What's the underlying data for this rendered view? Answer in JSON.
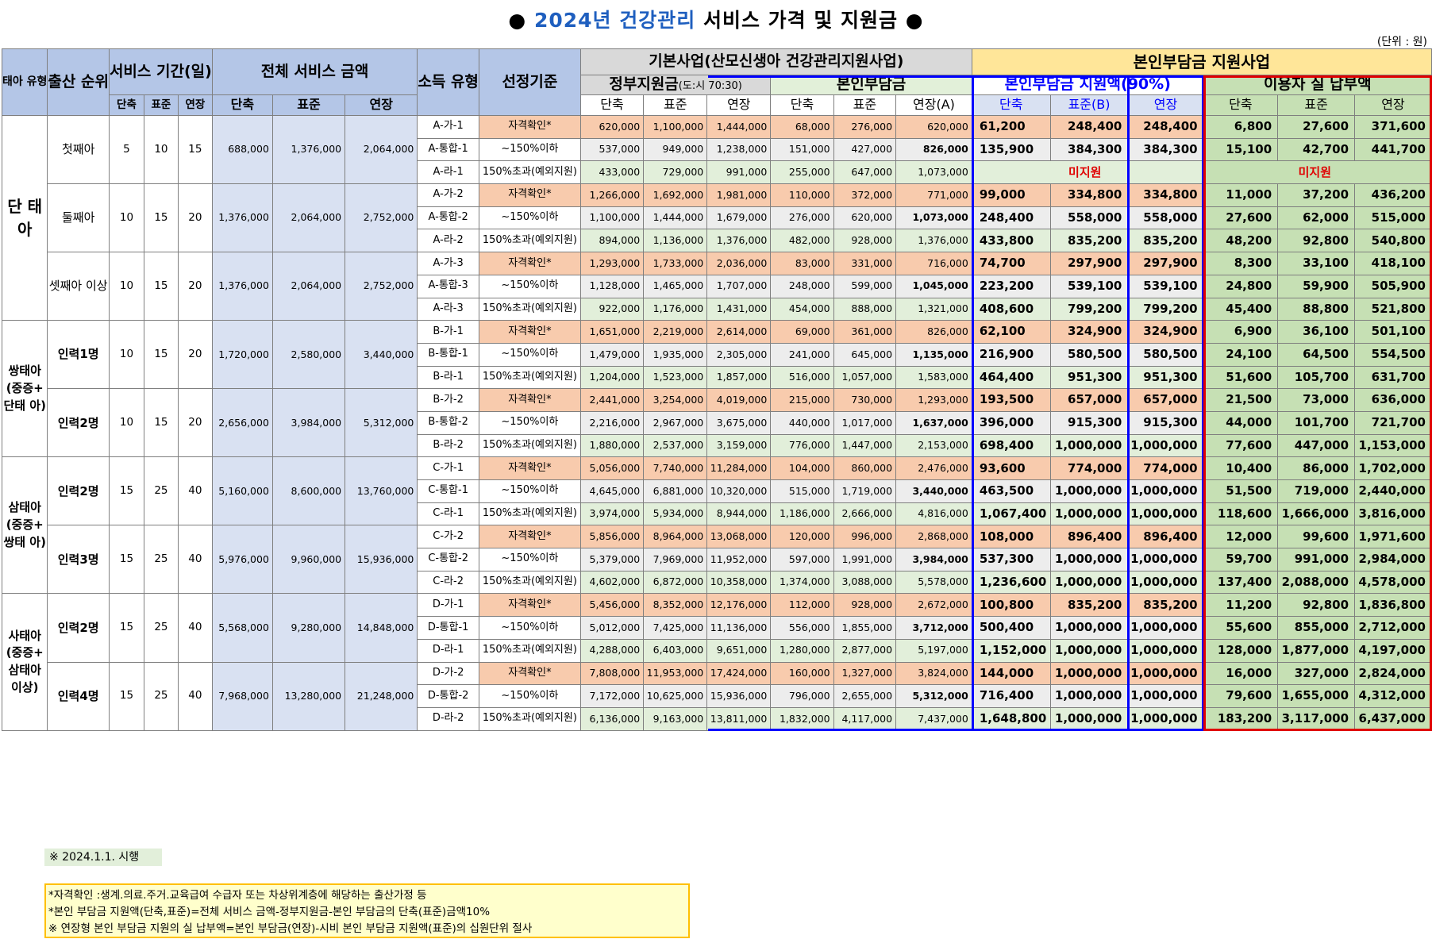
{
  "title": {
    "prefix": "● ",
    "year": "2024년 건강관리",
    "rest": " 서비스 가격 및 지원금 ●"
  },
  "unit": "(단위 : 원)",
  "headers": {
    "type": "태아\n유형",
    "order": "출산\n순위",
    "period": "서비스\n기간(일)",
    "total": "전체 서비스 금액",
    "income": "소득\n유형",
    "criteria": "선정기준",
    "basic": "기본사업(산모신생아 건강관리지원사업)",
    "support": "본인부담금 지원사업",
    "gov": "정부지원금",
    "gov_ratio": "(도:시 70:30)",
    "self": "본인부담금",
    "selfsupport": "본인부담금 지원액(90%)",
    "actual": "이용자 실 납부액",
    "short": "단축",
    "standard": "표준",
    "extended": "연장",
    "extendedA": "연장(A)",
    "standardB": "표준(B)"
  },
  "groups": [
    {
      "label": "단\n태\n아",
      "subs": [
        {
          "order": "첫째아",
          "days": [
            "5",
            "10",
            "15"
          ],
          "total": [
            "688,000",
            "1,376,000",
            "2,064,000"
          ],
          "rows": [
            {
              "code": "A-가-1",
              "crit": "자격확인*",
              "gov": [
                "620,000",
                "1,100,000",
                "1,444,000"
              ],
              "self": [
                "68,000",
                "276,000",
                "620,000"
              ],
              "sup": [
                "61,200",
                "248,400",
                "248,400"
              ],
              "act": [
                "6,800",
                "27,600",
                "371,600"
              ]
            },
            {
              "code": "A-통합-1",
              "crit": "~150%이하",
              "gov": [
                "537,000",
                "949,000",
                "1,238,000"
              ],
              "self": [
                "151,000",
                "427,000",
                "826,000"
              ],
              "sup": [
                "135,900",
                "384,300",
                "384,300"
              ],
              "act": [
                "15,100",
                "42,700",
                "441,700"
              ]
            },
            {
              "code": "A-라-1",
              "crit": "150%초과(예외지원)",
              "gov": [
                "433,000",
                "729,000",
                "991,000"
              ],
              "self": [
                "255,000",
                "647,000",
                "1,073,000"
              ],
              "none": "미지원"
            }
          ]
        },
        {
          "order": "둘째아",
          "days": [
            "10",
            "15",
            "20"
          ],
          "total": [
            "1,376,000",
            "2,064,000",
            "2,752,000"
          ],
          "rows": [
            {
              "code": "A-가-2",
              "crit": "자격확인*",
              "gov": [
                "1,266,000",
                "1,692,000",
                "1,981,000"
              ],
              "self": [
                "110,000",
                "372,000",
                "771,000"
              ],
              "sup": [
                "99,000",
                "334,800",
                "334,800"
              ],
              "act": [
                "11,000",
                "37,200",
                "436,200"
              ]
            },
            {
              "code": "A-통합-2",
              "crit": "~150%이하",
              "gov": [
                "1,100,000",
                "1,444,000",
                "1,679,000"
              ],
              "self": [
                "276,000",
                "620,000",
                "1,073,000"
              ],
              "sup": [
                "248,400",
                "558,000",
                "558,000"
              ],
              "act": [
                "27,600",
                "62,000",
                "515,000"
              ]
            },
            {
              "code": "A-라-2",
              "crit": "150%초과(예외지원)",
              "gov": [
                "894,000",
                "1,136,000",
                "1,376,000"
              ],
              "self": [
                "482,000",
                "928,000",
                "1,376,000"
              ],
              "sup": [
                "433,800",
                "835,200",
                "835,200"
              ],
              "act": [
                "48,200",
                "92,800",
                "540,800"
              ]
            }
          ]
        },
        {
          "order": "셋째아\n이상",
          "days": [
            "10",
            "15",
            "20"
          ],
          "total": [
            "1,376,000",
            "2,064,000",
            "2,752,000"
          ],
          "rows": [
            {
              "code": "A-가-3",
              "crit": "자격확인*",
              "gov": [
                "1,293,000",
                "1,733,000",
                "2,036,000"
              ],
              "self": [
                "83,000",
                "331,000",
                "716,000"
              ],
              "sup": [
                "74,700",
                "297,900",
                "297,900"
              ],
              "act": [
                "8,300",
                "33,100",
                "418,100"
              ]
            },
            {
              "code": "A-통합-3",
              "crit": "~150%이하",
              "gov": [
                "1,128,000",
                "1,465,000",
                "1,707,000"
              ],
              "self": [
                "248,000",
                "599,000",
                "1,045,000"
              ],
              "sup": [
                "223,200",
                "539,100",
                "539,100"
              ],
              "act": [
                "24,800",
                "59,900",
                "505,900"
              ]
            },
            {
              "code": "A-라-3",
              "crit": "150%초과(예외지원)",
              "gov": [
                "922,000",
                "1,176,000",
                "1,431,000"
              ],
              "self": [
                "454,000",
                "888,000",
                "1,321,000"
              ],
              "sup": [
                "408,600",
                "799,200",
                "799,200"
              ],
              "act": [
                "45,400",
                "88,800",
                "521,800"
              ]
            }
          ]
        }
      ]
    },
    {
      "label": "쌍태아\n(중증+\n단태\n아)",
      "subs": [
        {
          "order": "인력1명",
          "days": [
            "10",
            "15",
            "20"
          ],
          "total": [
            "1,720,000",
            "2,580,000",
            "3,440,000"
          ],
          "rows": [
            {
              "code": "B-가-1",
              "crit": "자격확인*",
              "gov": [
                "1,651,000",
                "2,219,000",
                "2,614,000"
              ],
              "self": [
                "69,000",
                "361,000",
                "826,000"
              ],
              "sup": [
                "62,100",
                "324,900",
                "324,900"
              ],
              "act": [
                "6,900",
                "36,100",
                "501,100"
              ]
            },
            {
              "code": "B-통합-1",
              "crit": "~150%이하",
              "gov": [
                "1,479,000",
                "1,935,000",
                "2,305,000"
              ],
              "self": [
                "241,000",
                "645,000",
                "1,135,000"
              ],
              "sup": [
                "216,900",
                "580,500",
                "580,500"
              ],
              "act": [
                "24,100",
                "64,500",
                "554,500"
              ]
            },
            {
              "code": "B-라-1",
              "crit": "150%초과(예외지원)",
              "gov": [
                "1,204,000",
                "1,523,000",
                "1,857,000"
              ],
              "self": [
                "516,000",
                "1,057,000",
                "1,583,000"
              ],
              "sup": [
                "464,400",
                "951,300",
                "951,300"
              ],
              "act": [
                "51,600",
                "105,700",
                "631,700"
              ]
            }
          ]
        },
        {
          "order": "인력2명",
          "days": [
            "10",
            "15",
            "20"
          ],
          "total": [
            "2,656,000",
            "3,984,000",
            "5,312,000"
          ],
          "rows": [
            {
              "code": "B-가-2",
              "crit": "자격확인*",
              "gov": [
                "2,441,000",
                "3,254,000",
                "4,019,000"
              ],
              "self": [
                "215,000",
                "730,000",
                "1,293,000"
              ],
              "sup": [
                "193,500",
                "657,000",
                "657,000"
              ],
              "act": [
                "21,500",
                "73,000",
                "636,000"
              ]
            },
            {
              "code": "B-통합-2",
              "crit": "~150%이하",
              "gov": [
                "2,216,000",
                "2,967,000",
                "3,675,000"
              ],
              "self": [
                "440,000",
                "1,017,000",
                "1,637,000"
              ],
              "sup": [
                "396,000",
                "915,300",
                "915,300"
              ],
              "act": [
                "44,000",
                "101,700",
                "721,700"
              ]
            },
            {
              "code": "B-라-2",
              "crit": "150%초과(예외지원)",
              "gov": [
                "1,880,000",
                "2,537,000",
                "3,159,000"
              ],
              "self": [
                "776,000",
                "1,447,000",
                "2,153,000"
              ],
              "sup": [
                "698,400",
                "1,000,000",
                "1,000,000"
              ],
              "act": [
                "77,600",
                "447,000",
                "1,153,000"
              ]
            }
          ]
        }
      ]
    },
    {
      "label": "삼태아\n(중증+\n쌍태\n아)",
      "subs": [
        {
          "order": "인력2명",
          "days": [
            "15",
            "25",
            "40"
          ],
          "total": [
            "5,160,000",
            "8,600,000",
            "13,760,000"
          ],
          "rows": [
            {
              "code": "C-가-1",
              "crit": "자격확인*",
              "gov": [
                "5,056,000",
                "7,740,000",
                "11,284,000"
              ],
              "self": [
                "104,000",
                "860,000",
                "2,476,000"
              ],
              "sup": [
                "93,600",
                "774,000",
                "774,000"
              ],
              "act": [
                "10,400",
                "86,000",
                "1,702,000"
              ]
            },
            {
              "code": "C-통합-1",
              "crit": "~150%이하",
              "gov": [
                "4,645,000",
                "6,881,000",
                "10,320,000"
              ],
              "self": [
                "515,000",
                "1,719,000",
                "3,440,000"
              ],
              "sup": [
                "463,500",
                "1,000,000",
                "1,000,000"
              ],
              "act": [
                "51,500",
                "719,000",
                "2,440,000"
              ]
            },
            {
              "code": "C-라-1",
              "crit": "150%초과(예외지원)",
              "gov": [
                "3,974,000",
                "5,934,000",
                "8,944,000"
              ],
              "self": [
                "1,186,000",
                "2,666,000",
                "4,816,000"
              ],
              "sup": [
                "1,067,400",
                "1,000,000",
                "1,000,000"
              ],
              "act": [
                "118,600",
                "1,666,000",
                "3,816,000"
              ]
            }
          ]
        },
        {
          "order": "인력3명",
          "days": [
            "15",
            "25",
            "40"
          ],
          "total": [
            "5,976,000",
            "9,960,000",
            "15,936,000"
          ],
          "rows": [
            {
              "code": "C-가-2",
              "crit": "자격확인*",
              "gov": [
                "5,856,000",
                "8,964,000",
                "13,068,000"
              ],
              "self": [
                "120,000",
                "996,000",
                "2,868,000"
              ],
              "sup": [
                "108,000",
                "896,400",
                "896,400"
              ],
              "act": [
                "12,000",
                "99,600",
                "1,971,600"
              ]
            },
            {
              "code": "C-통합-2",
              "crit": "~150%이하",
              "gov": [
                "5,379,000",
                "7,969,000",
                "11,952,000"
              ],
              "self": [
                "597,000",
                "1,991,000",
                "3,984,000"
              ],
              "sup": [
                "537,300",
                "1,000,000",
                "1,000,000"
              ],
              "act": [
                "59,700",
                "991,000",
                "2,984,000"
              ]
            },
            {
              "code": "C-라-2",
              "crit": "150%초과(예외지원)",
              "gov": [
                "4,602,000",
                "6,872,000",
                "10,358,000"
              ],
              "self": [
                "1,374,000",
                "3,088,000",
                "5,578,000"
              ],
              "sup": [
                "1,236,600",
                "1,000,000",
                "1,000,000"
              ],
              "act": [
                "137,400",
                "2,088,000",
                "4,578,000"
              ]
            }
          ]
        }
      ]
    },
    {
      "label": "사태아\n(중증+\n삼태아\n이상)",
      "subs": [
        {
          "order": "인력2명",
          "days": [
            "15",
            "25",
            "40"
          ],
          "total": [
            "5,568,000",
            "9,280,000",
            "14,848,000"
          ],
          "rows": [
            {
              "code": "D-가-1",
              "crit": "자격확인*",
              "gov": [
                "5,456,000",
                "8,352,000",
                "12,176,000"
              ],
              "self": [
                "112,000",
                "928,000",
                "2,672,000"
              ],
              "sup": [
                "100,800",
                "835,200",
                "835,200"
              ],
              "act": [
                "11,200",
                "92,800",
                "1,836,800"
              ]
            },
            {
              "code": "D-통합-1",
              "crit": "~150%이하",
              "gov": [
                "5,012,000",
                "7,425,000",
                "11,136,000"
              ],
              "self": [
                "556,000",
                "1,855,000",
                "3,712,000"
              ],
              "sup": [
                "500,400",
                "1,000,000",
                "1,000,000"
              ],
              "act": [
                "55,600",
                "855,000",
                "2,712,000"
              ]
            },
            {
              "code": "D-라-1",
              "crit": "150%초과(예외지원)",
              "gov": [
                "4,288,000",
                "6,403,000",
                "9,651,000"
              ],
              "self": [
                "1,280,000",
                "2,877,000",
                "5,197,000"
              ],
              "sup": [
                "1,152,000",
                "1,000,000",
                "1,000,000"
              ],
              "act": [
                "128,000",
                "1,877,000",
                "4,197,000"
              ]
            }
          ]
        },
        {
          "order": "인력4명",
          "days": [
            "15",
            "25",
            "40"
          ],
          "total": [
            "7,968,000",
            "13,280,000",
            "21,248,000"
          ],
          "rows": [
            {
              "code": "D-가-2",
              "crit": "자격확인*",
              "gov": [
                "7,808,000",
                "11,953,000",
                "17,424,000"
              ],
              "self": [
                "160,000",
                "1,327,000",
                "3,824,000"
              ],
              "sup": [
                "144,000",
                "1,000,000",
                "1,000,000"
              ],
              "act": [
                "16,000",
                "327,000",
                "2,824,000"
              ]
            },
            {
              "code": "D-통합-2",
              "crit": "~150%이하",
              "gov": [
                "7,172,000",
                "10,625,000",
                "15,936,000"
              ],
              "self": [
                "796,000",
                "2,655,000",
                "5,312,000"
              ],
              "sup": [
                "716,400",
                "1,000,000",
                "1,000,000"
              ],
              "act": [
                "79,600",
                "1,655,000",
                "4,312,000"
              ]
            },
            {
              "code": "D-라-2",
              "crit": "150%초과(예외지원)",
              "gov": [
                "6,136,000",
                "9,163,000",
                "13,811,000"
              ],
              "self": [
                "1,832,000",
                "4,117,000",
                "7,437,000"
              ],
              "sup": [
                "1,648,800",
                "1,000,000",
                "1,000,000"
              ],
              "act": [
                "183,200",
                "3,117,000",
                "6,437,000"
              ]
            }
          ]
        }
      ]
    }
  ],
  "footer": {
    "effective": "※ 2024.1.1. 시행",
    "notes": [
      "*자격확인 :생계.의료.주거.교육급여 수급자 또는 차상위계층에 해당하는 출산가정 등",
      "*본인 부담금 지원액(단축,표준)=전체 서비스 금액-정부지원금-본인 부담금의 단축(표준)금액10%",
      "※ 연장형 본인 부담금 지원의 실 납부액=본인 부담금(연장)-시비 본인 부담금 지원액(표준)의 십원단위 절사"
    ]
  },
  "colors": {
    "header_blue": "#b4c6e7",
    "title_blue": "#1f5fbf",
    "orange": "#f8cbad",
    "yellow": "#ffe699",
    "green": "#c6e0b4",
    "support_border": "#0000ff",
    "actual_border": "#e00000"
  }
}
